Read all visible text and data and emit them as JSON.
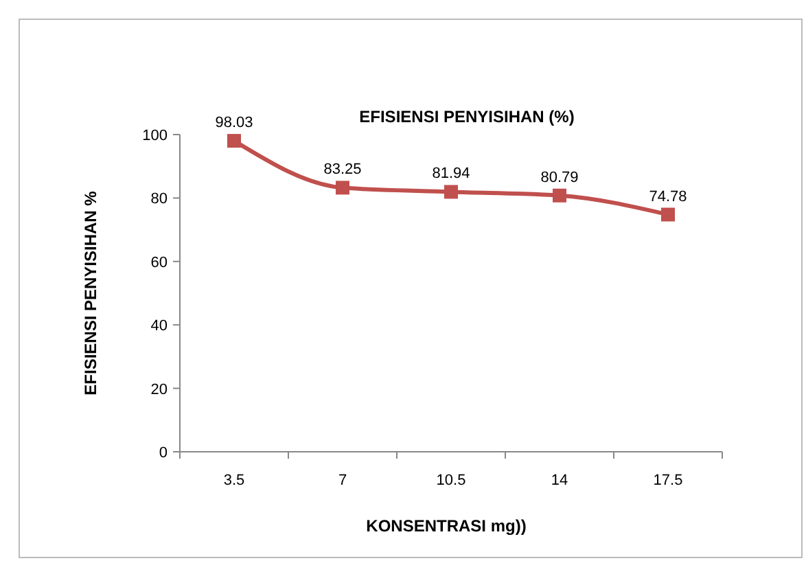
{
  "chart_data": {
    "type": "line",
    "title": "EFISIENSI PENYISIHAN (%)",
    "xlabel": "KONSENTRASI  mg))",
    "ylabel": "EFISIENSI PENYISIHAN %",
    "categories": [
      "3.5",
      "7",
      "10.5",
      "14",
      "17.5"
    ],
    "series": [
      {
        "color": "#c0504d",
        "values": [
          98.03,
          83.25,
          81.94,
          80.79,
          74.78
        ]
      }
    ],
    "ylim": [
      0,
      100
    ],
    "yticks": [
      0,
      20,
      40,
      60,
      80,
      100
    ],
    "marker": "square",
    "data_labels": true,
    "grid": false
  }
}
